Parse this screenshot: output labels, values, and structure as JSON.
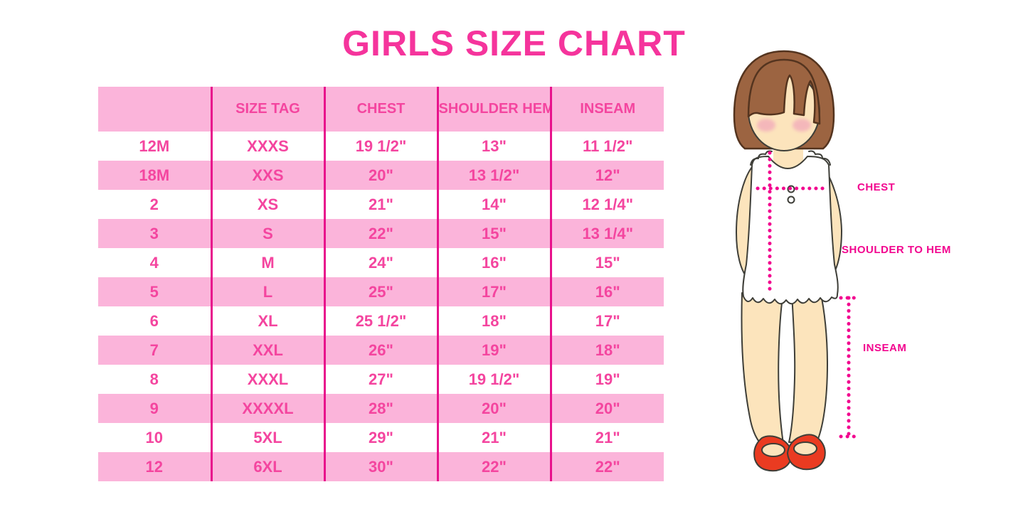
{
  "page_title": "GIRLS SIZE CHART",
  "chart_data": {
    "type": "table",
    "title": "GIRLS SIZE CHART",
    "columns": [
      "",
      "SIZE TAG",
      "CHEST",
      "SHOULDER HEM",
      "INSEAM"
    ],
    "rows": [
      [
        "12M",
        "XXXS",
        "19 1/2\"",
        "13\"",
        "11 1/2\""
      ],
      [
        "18M",
        "XXS",
        "20\"",
        "13 1/2\"",
        "12\""
      ],
      [
        "2",
        "XS",
        "21\"",
        "14\"",
        "12 1/4\""
      ],
      [
        "3",
        "S",
        "22\"",
        "15\"",
        "13 1/4\""
      ],
      [
        "4",
        "M",
        "24\"",
        "16\"",
        "15\""
      ],
      [
        "5",
        "L",
        "25\"",
        "17\"",
        "16\""
      ],
      [
        "6",
        "XL",
        "25 1/2\"",
        "18\"",
        "17\""
      ],
      [
        "7",
        "XXL",
        "26\"",
        "19\"",
        "18\""
      ],
      [
        "8",
        "XXXL",
        "27\"",
        "19 1/2\"",
        "19\""
      ],
      [
        "9",
        "XXXXL",
        "28\"",
        "20\"",
        "20\""
      ],
      [
        "10",
        "5XL",
        "29\"",
        "21\"",
        "21\""
      ],
      [
        "12",
        "6XL",
        "30\"",
        "22\"",
        "22\""
      ]
    ],
    "layout": {
      "alternating_rows": "white / light pink",
      "gridlines": "vertical magenta column rules only",
      "legend": "none"
    }
  },
  "figure": {
    "description_labels": {
      "chest": "CHEST",
      "shoulder_to_hem": "SHOULDER TO HEM",
      "inseam": "INSEAM"
    }
  },
  "colors": {
    "title_pink": "#F5349C",
    "text_pink": "#F4459F",
    "row_pink": "#FBB4DA",
    "line_magenta": "#E8118C",
    "label_magenta": "#F2068F",
    "hair_brown": "#9C6441",
    "hair_outline": "#54341F",
    "skin": "#FCE4BC",
    "body_outline": "#3E3E38",
    "blush": "#F2A9BA",
    "shoe_red": "#EA3B21",
    "bg": "#FFFFFF"
  }
}
